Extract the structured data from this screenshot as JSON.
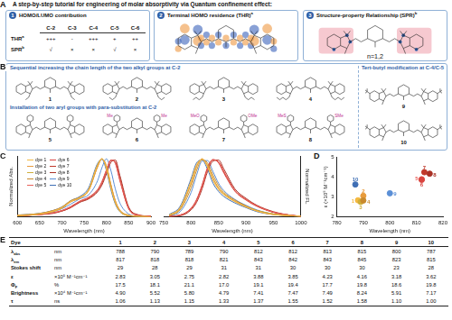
{
  "panel_labels": [
    "A",
    "B",
    "C",
    "D",
    "E"
  ],
  "header": {
    "title": "A step-by-step tutorial for engineering of molar absorptivity via Quantum confinement effect:",
    "steps": [
      {
        "number": "1",
        "text": "HOMO/LUMO contribution"
      },
      {
        "number": "2",
        "text": "Terminal HOMO residence (THR)",
        "sup": "a"
      },
      {
        "number": "3",
        "text": "Structure-property Relationship (SPR)",
        "sup": "b"
      }
    ],
    "table": {
      "columns": [
        "C-2",
        "C-3",
        "C-4",
        "C-5",
        "C-6"
      ],
      "rows": [
        {
          "label": "THR",
          "sup": "a",
          "cells": [
            "+++",
            "-",
            "+++",
            "+",
            "++"
          ]
        },
        {
          "label": "SPR",
          "sup": "b",
          "cells": [
            "√",
            "×",
            "×",
            "√",
            "×"
          ]
        }
      ]
    },
    "repeat_label": "n=1,2"
  },
  "structures": {
    "groups": [
      {
        "title": "Sequential increasing the chain length of the two alkyl groups at C-2",
        "dyes": [
          {
            "number": "1"
          },
          {
            "number": "2"
          },
          {
            "number": "3"
          },
          {
            "number": "4"
          }
        ]
      },
      {
        "title": "Installation of two aryl groups with para-substitution at C-2",
        "dyes": [
          {
            "number": "5"
          },
          {
            "number": "6",
            "substituents": [
              "Me",
              "Me"
            ]
          },
          {
            "number": "7",
            "substituents": [
              "MeO",
              "OMe"
            ]
          },
          {
            "number": "8",
            "substituents": [
              "MeS",
              "SMe"
            ]
          }
        ]
      },
      {
        "title": "Tert-butyl modification at C-4/C-5",
        "dyes": [
          {
            "number": "9"
          },
          {
            "number": "10"
          }
        ]
      }
    ]
  },
  "chart_data": [
    {
      "type": "line",
      "x_label": "Wavelength (nm)",
      "y_label": "Normalized Abs.",
      "x": [
        600,
        650,
        680,
        700,
        720,
        740,
        760,
        780,
        790,
        800,
        810,
        820,
        830,
        850,
        870,
        900
      ],
      "xlim": [
        600,
        900
      ],
      "xticks": [
        600,
        650,
        700,
        750,
        800,
        850,
        900
      ],
      "ylim": [
        0,
        1.05
      ],
      "yticks": [],
      "tick_labels": "x",
      "legend": "upper left",
      "series": [
        {
          "name": "dye 1",
          "color": "#f4b942",
          "values": [
            0.02,
            0.05,
            0.1,
            0.16,
            0.27,
            0.33,
            0.47,
            0.9,
            1.0,
            0.83,
            0.5,
            0.24,
            0.1,
            0.02,
            0.01,
            0.0
          ]
        },
        {
          "name": "dye 2",
          "color": "#e89b3c",
          "values": [
            0.02,
            0.05,
            0.1,
            0.15,
            0.26,
            0.32,
            0.45,
            0.86,
            1.0,
            0.87,
            0.55,
            0.27,
            0.11,
            0.02,
            0.01,
            0.0
          ]
        },
        {
          "name": "dye 3",
          "color": "#cfae3a",
          "values": [
            0.02,
            0.05,
            0.09,
            0.15,
            0.26,
            0.33,
            0.46,
            0.88,
            1.0,
            0.85,
            0.53,
            0.25,
            0.1,
            0.02,
            0.01,
            0.0
          ]
        },
        {
          "name": "dye 4",
          "color": "#c98a2e",
          "values": [
            0.03,
            0.06,
            0.11,
            0.17,
            0.28,
            0.34,
            0.46,
            0.86,
            1.0,
            0.88,
            0.56,
            0.28,
            0.12,
            0.03,
            0.01,
            0.0
          ]
        },
        {
          "name": "dye 5",
          "color": "#e8615a",
          "values": [
            0.02,
            0.04,
            0.07,
            0.11,
            0.17,
            0.27,
            0.33,
            0.46,
            0.6,
            0.8,
            0.98,
            0.93,
            0.64,
            0.14,
            0.03,
            0.01
          ]
        },
        {
          "name": "dye 6",
          "color": "#d9443f",
          "values": [
            0.02,
            0.04,
            0.07,
            0.11,
            0.18,
            0.27,
            0.34,
            0.47,
            0.61,
            0.81,
            0.98,
            0.92,
            0.63,
            0.14,
            0.03,
            0.01
          ]
        },
        {
          "name": "dye 7",
          "color": "#c0392b",
          "values": [
            0.02,
            0.04,
            0.07,
            0.1,
            0.16,
            0.26,
            0.32,
            0.45,
            0.58,
            0.78,
            0.97,
            0.95,
            0.67,
            0.15,
            0.03,
            0.01
          ]
        },
        {
          "name": "dye 8",
          "color": "#a93226",
          "values": [
            0.02,
            0.04,
            0.06,
            0.1,
            0.16,
            0.25,
            0.31,
            0.43,
            0.55,
            0.74,
            0.94,
            0.98,
            0.72,
            0.17,
            0.04,
            0.01
          ]
        },
        {
          "name": "dye 9",
          "color": "#5b8fd6",
          "values": [
            0.02,
            0.05,
            0.09,
            0.14,
            0.22,
            0.31,
            0.38,
            0.62,
            0.85,
            1.0,
            0.8,
            0.48,
            0.24,
            0.05,
            0.01,
            0.0
          ]
        },
        {
          "name": "dye 10",
          "color": "#3f6fb5",
          "values": [
            0.03,
            0.06,
            0.11,
            0.17,
            0.28,
            0.35,
            0.5,
            0.92,
            0.99,
            0.8,
            0.47,
            0.22,
            0.09,
            0.02,
            0.01,
            0.0
          ]
        }
      ]
    },
    {
      "type": "line",
      "x_label": "Wavelength (nm)",
      "y_label": "Normalized FL",
      "x": [
        760,
        780,
        800,
        810,
        820,
        830,
        840,
        850,
        860,
        880,
        900,
        920,
        950,
        980,
        1000
      ],
      "xlim": [
        750,
        1000
      ],
      "xticks": [
        750,
        800,
        850,
        900,
        950,
        1000
      ],
      "ylim": [
        0,
        1.05
      ],
      "yticks": [],
      "tick_labels": "x",
      "series": [
        {
          "color": "#f4b942",
          "values": [
            0.03,
            0.16,
            0.62,
            0.9,
            0.99,
            0.86,
            0.63,
            0.47,
            0.38,
            0.26,
            0.17,
            0.1,
            0.04,
            0.02,
            0.01
          ]
        },
        {
          "color": "#e89b3c",
          "values": [
            0.03,
            0.15,
            0.58,
            0.87,
            1.0,
            0.88,
            0.66,
            0.49,
            0.39,
            0.27,
            0.18,
            0.1,
            0.04,
            0.02,
            0.01
          ]
        },
        {
          "color": "#cfae3a",
          "values": [
            0.03,
            0.14,
            0.57,
            0.86,
            1.0,
            0.89,
            0.67,
            0.5,
            0.4,
            0.27,
            0.18,
            0.11,
            0.05,
            0.02,
            0.01
          ]
        },
        {
          "color": "#c98a2e",
          "values": [
            0.02,
            0.12,
            0.5,
            0.8,
            0.98,
            0.93,
            0.72,
            0.54,
            0.42,
            0.29,
            0.19,
            0.11,
            0.05,
            0.02,
            0.01
          ]
        },
        {
          "color": "#e8615a",
          "values": [
            0.01,
            0.03,
            0.14,
            0.28,
            0.52,
            0.82,
            0.98,
            0.95,
            0.78,
            0.45,
            0.3,
            0.19,
            0.08,
            0.03,
            0.01
          ]
        },
        {
          "color": "#d9443f",
          "values": [
            0.01,
            0.03,
            0.15,
            0.3,
            0.55,
            0.85,
            0.99,
            0.93,
            0.75,
            0.44,
            0.29,
            0.18,
            0.08,
            0.03,
            0.01
          ]
        },
        {
          "color": "#c0392b",
          "values": [
            0.01,
            0.03,
            0.14,
            0.28,
            0.53,
            0.83,
            0.98,
            0.95,
            0.77,
            0.45,
            0.3,
            0.19,
            0.08,
            0.03,
            0.01
          ]
        },
        {
          "color": "#a93226",
          "values": [
            0.01,
            0.02,
            0.12,
            0.25,
            0.48,
            0.78,
            0.96,
            0.98,
            0.82,
            0.48,
            0.32,
            0.2,
            0.09,
            0.03,
            0.01
          ]
        },
        {
          "color": "#5b8fd6",
          "values": [
            0.02,
            0.09,
            0.42,
            0.72,
            0.96,
            0.97,
            0.78,
            0.58,
            0.45,
            0.3,
            0.2,
            0.12,
            0.05,
            0.02,
            0.01
          ]
        },
        {
          "color": "#3f6fb5",
          "values": [
            0.04,
            0.18,
            0.66,
            0.93,
            0.98,
            0.82,
            0.58,
            0.44,
            0.35,
            0.24,
            0.16,
            0.09,
            0.04,
            0.02,
            0.01
          ]
        }
      ]
    },
    {
      "type": "scatter",
      "x_label": "Wavelength (nm)",
      "y_label": "ε (×10⁵ M⁻¹cm⁻¹)",
      "x": [
        788,
        790,
        789,
        790,
        812,
        812,
        813,
        815,
        800,
        787
      ],
      "values": [
        2.83,
        3.05,
        2.75,
        2.82,
        3.88,
        3.85,
        4.23,
        4.16,
        3.18,
        3.62
      ],
      "colors": [
        "#f4b942",
        "#e89b3c",
        "#cfae3a",
        "#c98a2e",
        "#e8615a",
        "#d9443f",
        "#c0392b",
        "#a93226",
        "#5b8fd6",
        "#3f6fb5"
      ],
      "point_labels": [
        "1",
        "2",
        "3",
        "4",
        "5",
        "6",
        "7",
        "8",
        "9",
        "10"
      ],
      "xlim": [
        780,
        820
      ],
      "xticks": [
        780,
        790,
        800,
        810,
        820
      ],
      "ylim": [
        2,
        5
      ],
      "yticks": [
        2,
        3,
        4,
        5
      ]
    }
  ],
  "table": {
    "header": {
      "label": {
        "main": "Dye"
      },
      "cells": [
        "1",
        "2",
        "3",
        "4",
        "5",
        "6",
        "7",
        "8",
        "9",
        "10"
      ]
    },
    "rows": [
      {
        "label": {
          "main": "λ",
          "sub": "abs"
        },
        "unit": "nm",
        "cells": [
          "788",
          "790",
          "789",
          "790",
          "812",
          "812",
          "813",
          "815",
          "800",
          "787"
        ]
      },
      {
        "label": {
          "main": "λ",
          "sub": "em"
        },
        "unit": "nm",
        "cells": [
          "817",
          "818",
          "818",
          "821",
          "843",
          "842",
          "843",
          "845",
          "823",
          "815"
        ]
      },
      {
        "label": {
          "main": "Stokes shift"
        },
        "unit": "nm",
        "cells": [
          "29",
          "28",
          "29",
          "31",
          "31",
          "30",
          "30",
          "30",
          "23",
          "28"
        ]
      },
      {
        "label": {
          "main": "ε"
        },
        "unit": "×10⁵ M⁻¹cm⁻¹",
        "cells": [
          "2.83",
          "3.05",
          "2.75",
          "2.82",
          "3.88",
          "3.85",
          "4.23",
          "4.16",
          "3.18",
          "3.62"
        ]
      },
      {
        "label": {
          "main": "Φ",
          "sub": "F"
        },
        "unit": "%",
        "cells": [
          "17.5",
          "18.1",
          "21.1",
          "17.0",
          "19.1",
          "19.4",
          "17.7",
          "19.8",
          "18.6",
          "19.8"
        ]
      },
      {
        "label": {
          "main": "Brightness"
        },
        "unit": "×10⁴ M⁻¹cm⁻¹",
        "cells": [
          "4.90",
          "5.52",
          "5.80",
          "4.79",
          "7.41",
          "7.47",
          "7.49",
          "8.24",
          "5.91",
          "7.17"
        ]
      },
      {
        "label": {
          "main": "τ"
        },
        "unit": "ns",
        "cells": [
          "1.06",
          "1.13",
          "1.15",
          "1.33",
          "1.37",
          "1.55",
          "1.52",
          "1.58",
          "1.10",
          "1.00"
        ]
      }
    ]
  }
}
